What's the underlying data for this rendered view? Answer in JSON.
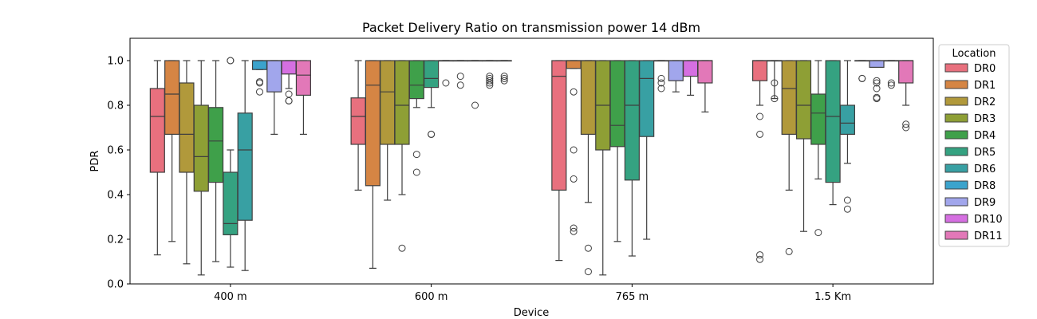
{
  "chart_data": {
    "type": "box",
    "title": "Packet Delivery Ratio on transmission power 14 dBm",
    "xlabel": "Device",
    "ylabel": "PDR",
    "ylim": [
      0.0,
      1.1
    ],
    "yticks": [
      "0.0",
      "0.2",
      "0.4",
      "0.6",
      "0.8",
      "1.0"
    ],
    "categories": [
      "400 m",
      "600 m",
      "765 m",
      "1.5 Km"
    ],
    "legend": {
      "title": "Location",
      "placement": "right",
      "entries": [
        "DR0",
        "DR1",
        "DR2",
        "DR3",
        "DR4",
        "DR5",
        "DR6",
        "DR8",
        "DR9",
        "DR10",
        "DR11"
      ]
    },
    "series": [
      {
        "name": "DR0",
        "color": "#e8707e",
        "boxes": [
          {
            "whislo": 0.13,
            "q1": 0.5,
            "med": 0.75,
            "q3": 0.875,
            "whishi": 1.0,
            "fliers": []
          },
          {
            "whislo": 0.42,
            "q1": 0.625,
            "med": 0.75,
            "q3": 0.833,
            "whishi": 1.0,
            "fliers": []
          },
          {
            "whislo": 0.105,
            "q1": 0.42,
            "med": 0.93,
            "q3": 1.0,
            "whishi": 1.0,
            "fliers": []
          },
          {
            "whislo": 0.8,
            "q1": 0.91,
            "med": 1.0,
            "q3": 1.0,
            "whishi": 1.0,
            "fliers": [
              0.75,
              0.67,
              0.13,
              0.11
            ]
          }
        ]
      },
      {
        "name": "DR1",
        "color": "#d58544",
        "boxes": [
          {
            "whislo": 0.19,
            "q1": 0.67,
            "med": 0.85,
            "q3": 1.0,
            "whishi": 1.0,
            "fliers": []
          },
          {
            "whislo": 0.07,
            "q1": 0.44,
            "med": 0.89,
            "q3": 1.0,
            "whishi": 1.0,
            "fliers": []
          },
          {
            "whislo": 0.965,
            "q1": 0.965,
            "med": 1.0,
            "q3": 1.0,
            "whishi": 1.0,
            "fliers": [
              0.86,
              0.6,
              0.47,
              0.25,
              0.235
            ]
          },
          {
            "whislo": 0.83,
            "q1": 1.0,
            "med": 1.0,
            "q3": 1.0,
            "whishi": 1.0,
            "fliers": [
              0.9,
              0.83
            ]
          }
        ]
      },
      {
        "name": "DR2",
        "color": "#b1993b",
        "boxes": [
          {
            "whislo": 0.09,
            "q1": 0.5,
            "med": 0.67,
            "q3": 0.9,
            "whishi": 1.0,
            "fliers": []
          },
          {
            "whislo": 0.375,
            "q1": 0.625,
            "med": 0.86,
            "q3": 1.0,
            "whishi": 1.0,
            "fliers": []
          },
          {
            "whislo": 0.365,
            "q1": 0.67,
            "med": 1.0,
            "q3": 1.0,
            "whishi": 1.0,
            "fliers": [
              0.16,
              0.055
            ]
          },
          {
            "whislo": 0.42,
            "q1": 0.67,
            "med": 0.875,
            "q3": 1.0,
            "whishi": 1.0,
            "fliers": [
              0.145
            ]
          }
        ]
      },
      {
        "name": "DR3",
        "color": "#8e9f35",
        "boxes": [
          {
            "whislo": 0.04,
            "q1": 0.415,
            "med": 0.57,
            "q3": 0.8,
            "whishi": 1.0,
            "fliers": []
          },
          {
            "whislo": 0.4,
            "q1": 0.625,
            "med": 0.8,
            "q3": 1.0,
            "whishi": 1.0,
            "fliers": [
              0.16
            ]
          },
          {
            "whislo": 0.04,
            "q1": 0.6,
            "med": 0.8,
            "q3": 1.0,
            "whishi": 1.0,
            "fliers": []
          },
          {
            "whislo": 0.235,
            "q1": 0.65,
            "med": 0.8,
            "q3": 1.0,
            "whishi": 1.0,
            "fliers": []
          }
        ]
      },
      {
        "name": "DR4",
        "color": "#3fa04a",
        "boxes": [
          {
            "whislo": 0.1,
            "q1": 0.455,
            "med": 0.64,
            "q3": 0.79,
            "whishi": 1.0,
            "fliers": []
          },
          {
            "whislo": 0.79,
            "q1": 0.83,
            "med": 0.89,
            "q3": 1.0,
            "whishi": 1.0,
            "fliers": [
              0.58,
              0.5
            ]
          },
          {
            "whislo": 0.19,
            "q1": 0.615,
            "med": 0.71,
            "q3": 1.0,
            "whishi": 1.0,
            "fliers": []
          },
          {
            "whislo": 0.47,
            "q1": 0.625,
            "med": 0.765,
            "q3": 0.85,
            "whishi": 1.0,
            "fliers": [
              0.23
            ]
          }
        ]
      },
      {
        "name": "DR5",
        "color": "#35a281",
        "boxes": [
          {
            "whislo": 0.075,
            "q1": 0.22,
            "med": 0.27,
            "q3": 0.5,
            "whishi": 0.6,
            "fliers": [
              1.0,
              1.0
            ]
          },
          {
            "whislo": 0.79,
            "q1": 0.88,
            "med": 0.92,
            "q3": 1.0,
            "whishi": 1.0,
            "fliers": [
              0.67,
              0.67
            ]
          },
          {
            "whislo": 0.125,
            "q1": 0.465,
            "med": 0.8,
            "q3": 1.0,
            "whishi": 1.0,
            "fliers": []
          },
          {
            "whislo": 0.355,
            "q1": 0.455,
            "med": 0.75,
            "q3": 1.0,
            "whishi": 1.0,
            "fliers": []
          }
        ]
      },
      {
        "name": "DR6",
        "color": "#38a0a3",
        "boxes": [
          {
            "whislo": 0.06,
            "q1": 0.285,
            "med": 0.6,
            "q3": 0.765,
            "whishi": 1.0,
            "fliers": []
          },
          {
            "whislo": 1.0,
            "q1": 1.0,
            "med": 1.0,
            "q3": 1.0,
            "whishi": 1.0,
            "fliers": [
              0.9
            ]
          },
          {
            "whislo": 0.2,
            "q1": 0.66,
            "med": 0.92,
            "q3": 1.0,
            "whishi": 1.0,
            "fliers": []
          },
          {
            "whislo": 0.54,
            "q1": 0.67,
            "med": 0.72,
            "q3": 0.8,
            "whishi": 1.0,
            "fliers": [
              0.375,
              0.335
            ]
          }
        ]
      },
      {
        "name": "DR8",
        "color": "#3ba3cc",
        "boxes": [
          {
            "whislo": 0.96,
            "q1": 0.96,
            "med": 1.0,
            "q3": 1.0,
            "whishi": 1.0,
            "fliers": [
              0.905,
              0.9,
              0.86
            ]
          },
          {
            "whislo": 1.0,
            "q1": 1.0,
            "med": 1.0,
            "q3": 1.0,
            "whishi": 1.0,
            "fliers": [
              0.93,
              0.89
            ]
          },
          {
            "whislo": 1.0,
            "q1": 1.0,
            "med": 1.0,
            "q3": 1.0,
            "whishi": 1.0,
            "fliers": [
              0.92,
              0.9,
              0.875
            ]
          },
          {
            "whislo": 1.0,
            "q1": 1.0,
            "med": 1.0,
            "q3": 1.0,
            "whishi": 1.0,
            "fliers": [
              0.92,
              0.92
            ]
          }
        ]
      },
      {
        "name": "DR9",
        "color": "#a1a6ec",
        "boxes": [
          {
            "whislo": 0.67,
            "q1": 0.86,
            "med": 1.0,
            "q3": 1.0,
            "whishi": 1.0,
            "fliers": []
          },
          {
            "whislo": 1.0,
            "q1": 1.0,
            "med": 1.0,
            "q3": 1.0,
            "whishi": 1.0,
            "fliers": [
              0.8
            ]
          },
          {
            "whislo": 0.86,
            "q1": 0.91,
            "med": 1.0,
            "q3": 1.0,
            "whishi": 1.0,
            "fliers": []
          },
          {
            "whislo": 0.97,
            "q1": 0.97,
            "med": 1.0,
            "q3": 1.0,
            "whishi": 1.0,
            "fliers": [
              0.91,
              0.9,
              0.875,
              0.835,
              0.83
            ]
          }
        ]
      },
      {
        "name": "DR10",
        "color": "#d56fe1",
        "boxes": [
          {
            "whislo": 0.875,
            "q1": 0.94,
            "med": 1.0,
            "q3": 1.0,
            "whishi": 1.0,
            "fliers": [
              0.85,
              0.82,
              0.82
            ]
          },
          {
            "whislo": 1.0,
            "q1": 1.0,
            "med": 1.0,
            "q3": 1.0,
            "whishi": 1.0,
            "fliers": [
              0.93,
              0.92,
              0.91,
              0.9,
              0.89
            ]
          },
          {
            "whislo": 0.845,
            "q1": 0.93,
            "med": 1.0,
            "q3": 1.0,
            "whishi": 1.0,
            "fliers": []
          },
          {
            "whislo": 1.0,
            "q1": 1.0,
            "med": 1.0,
            "q3": 1.0,
            "whishi": 1.0,
            "fliers": [
              0.9,
              0.89
            ]
          }
        ]
      },
      {
        "name": "DR11",
        "color": "#e278b8",
        "boxes": [
          {
            "whislo": 0.67,
            "q1": 0.845,
            "med": 0.935,
            "q3": 1.0,
            "whishi": 1.0,
            "fliers": []
          },
          {
            "whislo": 1.0,
            "q1": 1.0,
            "med": 1.0,
            "q3": 1.0,
            "whishi": 1.0,
            "fliers": [
              0.93,
              0.92,
              0.91
            ]
          },
          {
            "whislo": 0.77,
            "q1": 0.9,
            "med": 1.0,
            "q3": 1.0,
            "whishi": 1.0,
            "fliers": []
          },
          {
            "whislo": 0.8,
            "q1": 0.9,
            "med": 1.0,
            "q3": 1.0,
            "whishi": 1.0,
            "fliers": [
              0.715,
              0.7
            ]
          }
        ]
      }
    ]
  }
}
